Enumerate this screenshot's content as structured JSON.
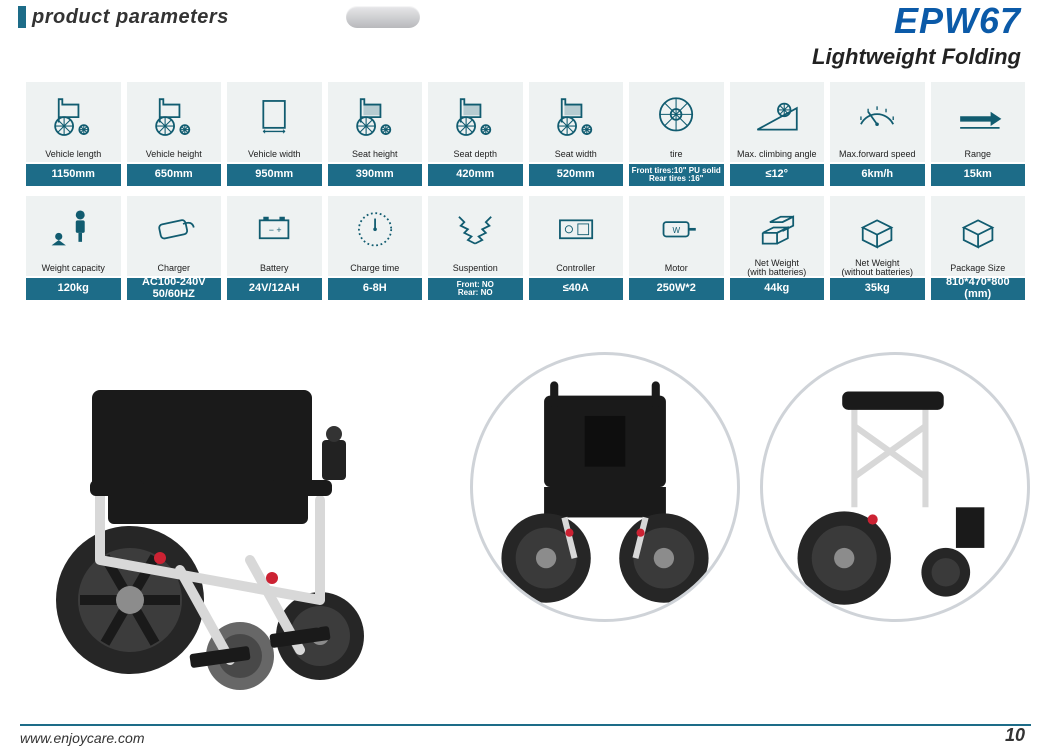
{
  "header": {
    "title": "product parameters",
    "model": "EPW67",
    "subtitle": "Lightweight  Folding",
    "model_color": "#0b5aa8"
  },
  "colors": {
    "icon_bg": "#eef2f2",
    "value_bg": "#1d6c88",
    "footer_line": "#1d6c88"
  },
  "spec_rows": [
    [
      {
        "icon": "wheelchair-side",
        "label": "Vehicle length",
        "value": "1150mm"
      },
      {
        "icon": "wheelchair-side",
        "label": "Vehicle height",
        "value": "650mm"
      },
      {
        "icon": "width-box",
        "label": "Vehicle width",
        "value": "950mm"
      },
      {
        "icon": "wheelchair-seat",
        "label": "Seat height",
        "value": "390mm"
      },
      {
        "icon": "wheelchair-seat",
        "label": "Seat depth",
        "value": "420mm"
      },
      {
        "icon": "wheelchair-seat",
        "label": "Seat width",
        "value": "520mm"
      },
      {
        "icon": "tire",
        "label": "tire",
        "value": "Front tires:10\" PU solid\nRear tires :16\""
      },
      {
        "icon": "ramp",
        "label": "Max. climbing angle",
        "value": "≤12°"
      },
      {
        "icon": "speedometer",
        "label": "Max.forward speed",
        "value": "6km/h"
      },
      {
        "icon": "range-arrow",
        "label": "Range",
        "value": "15km"
      }
    ],
    [
      {
        "icon": "weight-person",
        "label": "Weight capacity",
        "value": "120kg"
      },
      {
        "icon": "charger",
        "label": "Charger",
        "value": "AC100-240V\n50/60HZ"
      },
      {
        "icon": "battery",
        "label": "Battery",
        "value": "24V/12AH"
      },
      {
        "icon": "clock",
        "label": "Charge time",
        "value": "6-8H"
      },
      {
        "icon": "spring",
        "label": "Suspention",
        "value": "Front:   NO\nRear:    NO"
      },
      {
        "icon": "controller",
        "label": "Controller",
        "value": "≤40A"
      },
      {
        "icon": "motor",
        "label": "Motor",
        "value": "250W*2"
      },
      {
        "icon": "boxes",
        "label": "Net Weight\n(with batteries)",
        "value": "44kg"
      },
      {
        "icon": "box",
        "label": "Net Weight\n(without batteries)",
        "value": "35kg"
      },
      {
        "icon": "box",
        "label": "Package Size",
        "value": "810*470*800\n(mm)"
      }
    ]
  ],
  "footer": {
    "url": "www.enjoycare.com",
    "page": "10"
  }
}
